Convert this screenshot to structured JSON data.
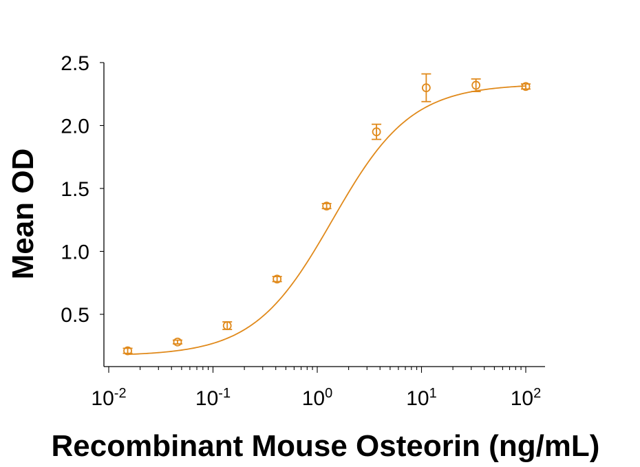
{
  "chart_data": {
    "type": "scatter",
    "title": "",
    "xlabel": "Recombinant Mouse Osteorin (ng/mL)",
    "ylabel": "Mean OD",
    "x_scale": "log",
    "xlim": [
      0.01,
      100
    ],
    "ylim": [
      0.1,
      2.5
    ],
    "x_ticks": [
      {
        "base": "10",
        "exp": "-2",
        "value": 0.01
      },
      {
        "base": "10",
        "exp": "-1",
        "value": 0.1
      },
      {
        "base": "10",
        "exp": "0",
        "value": 1
      },
      {
        "base": "10",
        "exp": "1",
        "value": 10
      },
      {
        "base": "10",
        "exp": "2",
        "value": 100
      }
    ],
    "y_ticks": [
      {
        "label": "0.5",
        "value": 0.5
      },
      {
        "label": "1.0",
        "value": 1.0
      },
      {
        "label": "1.5",
        "value": 1.5
      },
      {
        "label": "2.0",
        "value": 2.0
      },
      {
        "label": "2.5",
        "value": 2.5
      }
    ],
    "grid": false,
    "legend": "none",
    "color": "#E0891A",
    "series": [
      {
        "x": [
          0.0152,
          0.0457,
          0.137,
          0.412,
          1.23,
          3.7,
          11.1,
          33.3,
          100
        ],
        "y": [
          0.21,
          0.28,
          0.41,
          0.78,
          1.36,
          1.95,
          2.3,
          2.32,
          2.31
        ],
        "error": [
          0.02,
          0.015,
          0.03,
          0.02,
          0.02,
          0.06,
          0.11,
          0.05,
          0.02
        ]
      }
    ],
    "fit_curve": {
      "model": "4PL",
      "bottom": 0.17,
      "top": 2.33,
      "ec50": 1.4,
      "hill": 1.15
    }
  }
}
